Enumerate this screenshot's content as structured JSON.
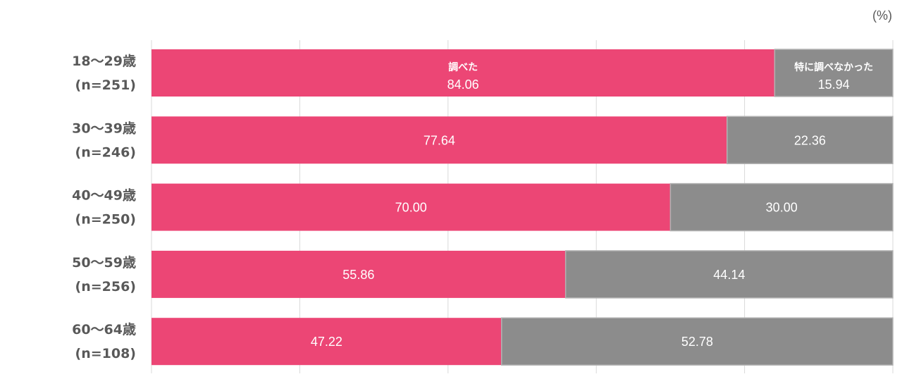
{
  "chart_data": {
    "type": "bar",
    "orientation": "horizontal",
    "stacked": true,
    "unit": "(%)",
    "categories": [
      [
        "18～29歳",
        "(n=251)"
      ],
      [
        "30～39歳",
        "(n=246)"
      ],
      [
        "40～49歳",
        "(n=250)"
      ],
      [
        "50～59歳",
        "(n=256)"
      ],
      [
        "60～64歳",
        "(n=108)"
      ]
    ],
    "series": [
      {
        "name": "調べた",
        "color": "#EC4675",
        "values": [
          84.06,
          77.64,
          70.0,
          55.86,
          47.22
        ]
      },
      {
        "name": "特に調べなかった",
        "color": "#8C8C8C",
        "values": [
          15.94,
          22.36,
          30.0,
          44.14,
          52.78
        ]
      }
    ],
    "xlim": [
      0,
      100
    ],
    "grid_step": 20,
    "grid": true
  }
}
